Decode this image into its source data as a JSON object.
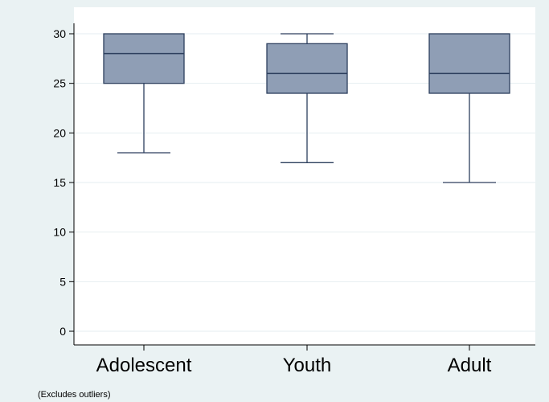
{
  "chart_data": {
    "type": "box",
    "categories": [
      "Adolescent",
      "Youth",
      "Adult"
    ],
    "boxes": [
      {
        "category": "Adolescent",
        "min": 18,
        "q1": 25,
        "median": 28,
        "q3": 30,
        "max": 30
      },
      {
        "category": "Youth",
        "min": 17,
        "q1": 24,
        "median": 26,
        "q3": 29,
        "max": 30
      },
      {
        "category": "Adult",
        "min": 15,
        "q1": 24,
        "median": 26,
        "q3": 30,
        "max": 30
      }
    ],
    "yticks": [
      "0",
      "5",
      "10",
      "15",
      "20",
      "25",
      "30"
    ],
    "ylim": [
      0,
      30
    ],
    "grid": true,
    "note": "(Excludes outliers)",
    "colors": {
      "background": "#eaf2f3",
      "plot_area": "#ffffff",
      "box_fill": "#8f9eb5",
      "box_stroke": "#2d3f5e",
      "grid": "#e6eef0"
    }
  }
}
